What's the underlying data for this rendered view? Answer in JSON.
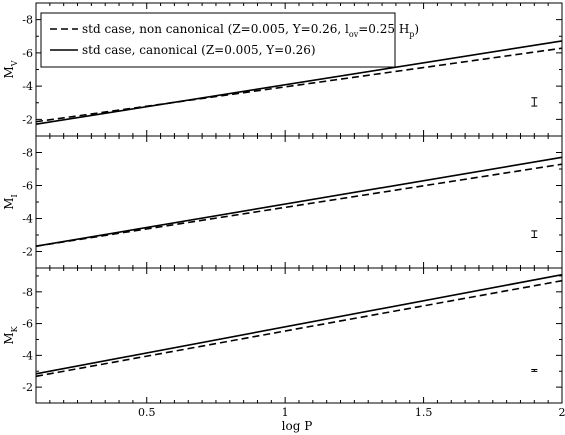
{
  "chart_data": {
    "type": "line",
    "xlabel": "log P",
    "xlim": [
      0.1,
      2.0
    ],
    "x_ticks": [
      0.5,
      1,
      1.5,
      2
    ],
    "x_tick_labels": [
      "0.5",
      "1",
      "1.5",
      "2"
    ],
    "legend": {
      "placement": "top-left",
      "entries": [
        {
          "style": "dashed",
          "text": "std case, non canonical (Z=0.005, Y=0.26, l",
          "sub1": "ov",
          "mid": "=0.25 H",
          "sub2": "p",
          "end": ")"
        },
        {
          "style": "solid",
          "text": "std case, canonical (Z=0.005, Y=0.26)"
        }
      ]
    },
    "panels": [
      {
        "ylabel_main": "M",
        "ylabel_sub": "V",
        "ylim": [
          -1,
          -9
        ],
        "y_ticks": [
          -2,
          -4,
          -6,
          -8
        ],
        "y_tick_labels": [
          "-2",
          "-4",
          "-6",
          "-8"
        ],
        "series": [
          {
            "style": "solid",
            "x": [
              0.1,
              2.0
            ],
            "y": [
              -1.71,
              -6.72
            ]
          },
          {
            "style": "dashed",
            "x": [
              0.1,
              2.0
            ],
            "y": [
              -1.86,
              -6.28
            ]
          }
        ],
        "error_bar": {
          "x": 1.9,
          "y": -3.05,
          "err": 0.25
        }
      },
      {
        "ylabel_main": "M",
        "ylabel_sub": "I",
        "ylim": [
          -1,
          -9
        ],
        "y_ticks": [
          -2,
          -4,
          -6,
          -8
        ],
        "y_tick_labels": [
          "-2",
          "-4",
          "-6",
          "-8"
        ],
        "series": [
          {
            "style": "solid",
            "x": [
              0.1,
              2.0
            ],
            "y": [
              -2.32,
              -7.71
            ]
          },
          {
            "style": "dashed",
            "x": [
              0.1,
              2.0
            ],
            "y": [
              -2.32,
              -7.29
            ]
          }
        ],
        "error_bar": {
          "x": 1.9,
          "y": -3.05,
          "err": 0.2
        }
      },
      {
        "ylabel_main": "M",
        "ylabel_sub": "K",
        "ylim": [
          -1,
          -9.5
        ],
        "y_ticks": [
          -2,
          -4,
          -6,
          -8
        ],
        "y_tick_labels": [
          "-2",
          "-4",
          "-6",
          "-8"
        ],
        "series": [
          {
            "style": "solid",
            "x": [
              0.1,
              2.0
            ],
            "y": [
              -2.84,
              -9.08
            ]
          },
          {
            "style": "dashed",
            "x": [
              0.1,
              2.0
            ],
            "y": [
              -2.68,
              -8.7
            ]
          }
        ],
        "error_bar": {
          "x": 1.9,
          "y": -3.05,
          "err": 0.06
        }
      }
    ]
  }
}
